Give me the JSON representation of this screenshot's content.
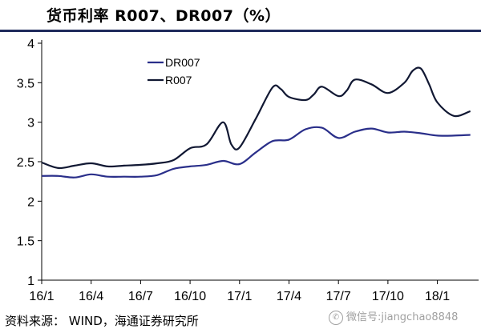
{
  "title": "货币利率 R007、DR007（%）",
  "source_text": "资料来源： WIND，海通证券研究所",
  "watermark": {
    "text": "微信号:jiangchao8848",
    "icon": "wechat-icon"
  },
  "chart_data": {
    "type": "line",
    "ylim": [
      1,
      4
    ],
    "yticks": [
      "1",
      "1.5",
      "2",
      "2.5",
      "3",
      "3.5",
      "4"
    ],
    "xlim": [
      0,
      26.5
    ],
    "xtick_labels": [
      "16/1",
      "16/4",
      "16/7",
      "16/10",
      "17/1",
      "17/4",
      "17/7",
      "17/10",
      "18/1"
    ],
    "legend_placement": "upper-left",
    "series": [
      {
        "name": "DR007",
        "color": "#2a2f8a",
        "points": [
          [
            0,
            2.32
          ],
          [
            1,
            2.32
          ],
          [
            2,
            2.3
          ],
          [
            3,
            2.34
          ],
          [
            4,
            2.31
          ],
          [
            5,
            2.31
          ],
          [
            6,
            2.31
          ],
          [
            7,
            2.33
          ],
          [
            8,
            2.41
          ],
          [
            9,
            2.44
          ],
          [
            10,
            2.46
          ],
          [
            11,
            2.51
          ],
          [
            12,
            2.47
          ],
          [
            13,
            2.62
          ],
          [
            14,
            2.76
          ],
          [
            15,
            2.78
          ],
          [
            16,
            2.91
          ],
          [
            17,
            2.93
          ],
          [
            18,
            2.8
          ],
          [
            19,
            2.88
          ],
          [
            20,
            2.92
          ],
          [
            21,
            2.87
          ],
          [
            22,
            2.88
          ],
          [
            23,
            2.86
          ],
          [
            24,
            2.83
          ],
          [
            25,
            2.83
          ],
          [
            26,
            2.84
          ]
        ]
      },
      {
        "name": "R007",
        "color": "#111833",
        "points": [
          [
            0,
            2.49
          ],
          [
            1,
            2.42
          ],
          [
            2,
            2.45
          ],
          [
            3,
            2.48
          ],
          [
            4,
            2.44
          ],
          [
            5,
            2.45
          ],
          [
            6,
            2.46
          ],
          [
            7,
            2.48
          ],
          [
            8,
            2.52
          ],
          [
            9,
            2.67
          ],
          [
            10,
            2.72
          ],
          [
            11,
            3.0
          ],
          [
            11.5,
            2.72
          ],
          [
            12,
            2.68
          ],
          [
            13,
            3.05
          ],
          [
            14,
            3.44
          ],
          [
            14.5,
            3.42
          ],
          [
            15,
            3.32
          ],
          [
            16,
            3.28
          ],
          [
            16.5,
            3.35
          ],
          [
            17,
            3.45
          ],
          [
            18,
            3.33
          ],
          [
            18.5,
            3.4
          ],
          [
            19,
            3.54
          ],
          [
            20,
            3.48
          ],
          [
            21,
            3.37
          ],
          [
            22,
            3.5
          ],
          [
            22.5,
            3.65
          ],
          [
            23,
            3.68
          ],
          [
            23.5,
            3.48
          ],
          [
            24,
            3.25
          ],
          [
            25,
            3.08
          ],
          [
            26,
            3.14
          ]
        ]
      }
    ]
  }
}
